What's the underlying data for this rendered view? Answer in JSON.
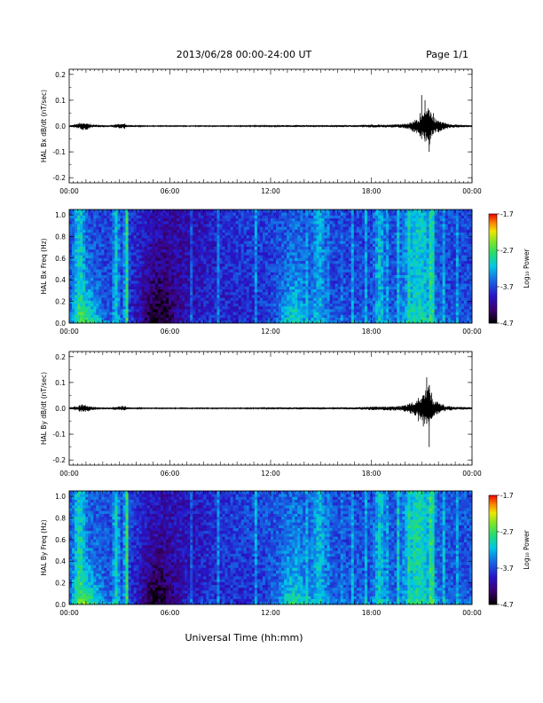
{
  "header": {
    "title": "2013/06/28  00:00-24:00 UT",
    "page": "Page 1/1"
  },
  "footer": {
    "xlabel": "Universal Time (hh:mm)"
  },
  "colors": {
    "line": "#000000",
    "background": "#ffffff"
  },
  "chart_data": [
    {
      "type": "line",
      "id": "bx-dbdt",
      "ylabel": "HAL Bx dB/dt (nT/sec)",
      "x_ticks": [
        "00:00",
        "06:00",
        "12:00",
        "18:00",
        "00:00"
      ],
      "y_ticks": [
        "0.2",
        "0.1",
        "0.0",
        "-0.1",
        "-0.2"
      ],
      "ylim": [
        -0.22,
        0.22
      ],
      "xlim_hours": [
        0,
        24
      ],
      "series": [
        {
          "envelope": [
            [
              0.0,
              0.003
            ],
            [
              0.4,
              0.008
            ],
            [
              0.8,
              0.017
            ],
            [
              1.1,
              0.014
            ],
            [
              1.4,
              0.006
            ],
            [
              1.8,
              0.005
            ],
            [
              2.4,
              0.004
            ],
            [
              3.3,
              0.012
            ],
            [
              3.5,
              0.004
            ],
            [
              4.5,
              0.002
            ],
            [
              6.0,
              0.002
            ],
            [
              8.0,
              0.002
            ],
            [
              10.0,
              0.002
            ],
            [
              12.0,
              0.003
            ],
            [
              13.5,
              0.004
            ],
            [
              15.0,
              0.003
            ],
            [
              17.0,
              0.004
            ],
            [
              18.0,
              0.006
            ],
            [
              19.0,
              0.006
            ],
            [
              19.8,
              0.007
            ],
            [
              20.3,
              0.015
            ],
            [
              20.7,
              0.03
            ],
            [
              21.0,
              0.045
            ],
            [
              21.3,
              0.06
            ],
            [
              21.45,
              0.08
            ],
            [
              21.6,
              0.04
            ],
            [
              22.0,
              0.025
            ],
            [
              22.4,
              0.012
            ],
            [
              23.0,
              0.006
            ],
            [
              24.0,
              0.004
            ]
          ]
        }
      ]
    },
    {
      "type": "heatmap",
      "id": "bx-spectrogram",
      "ylabel": "HAL Bx Freq (Hz)",
      "x_ticks": [
        "00:00",
        "06:00",
        "12:00",
        "18:00",
        "00:00"
      ],
      "y_ticks": [
        "1.0",
        "0.8",
        "0.6",
        "0.4",
        "0.2",
        "0.0"
      ],
      "ylim": [
        0.0,
        1.05
      ],
      "colorbar": {
        "label": "Log₁₀ Power",
        "ticks": [
          "-1.7",
          "-2.7",
          "-3.7",
          "-4.7"
        ],
        "range": [
          -4.7,
          -1.7
        ]
      }
    },
    {
      "type": "line",
      "id": "by-dbdt",
      "ylabel": "HAL By dB/dt (nT/sec)",
      "x_ticks": [
        "00:00",
        "06:00",
        "12:00",
        "18:00",
        "00:00"
      ],
      "y_ticks": [
        "0.2",
        "0.1",
        "0.0",
        "-0.1",
        "-0.2"
      ],
      "ylim": [
        -0.22,
        0.22
      ],
      "xlim_hours": [
        0,
        24
      ],
      "series": [
        {
          "envelope": [
            [
              0.0,
              0.003
            ],
            [
              0.4,
              0.009
            ],
            [
              0.8,
              0.016
            ],
            [
              1.1,
              0.013
            ],
            [
              1.4,
              0.006
            ],
            [
              1.8,
              0.005
            ],
            [
              2.4,
              0.004
            ],
            [
              3.3,
              0.01
            ],
            [
              3.5,
              0.004
            ],
            [
              4.5,
              0.002
            ],
            [
              6.0,
              0.002
            ],
            [
              8.0,
              0.002
            ],
            [
              10.0,
              0.002
            ],
            [
              12.0,
              0.003
            ],
            [
              13.5,
              0.004
            ],
            [
              15.0,
              0.003
            ],
            [
              17.0,
              0.004
            ],
            [
              18.0,
              0.007
            ],
            [
              19.0,
              0.008
            ],
            [
              19.8,
              0.01
            ],
            [
              20.3,
              0.02
            ],
            [
              20.7,
              0.03
            ],
            [
              21.0,
              0.05
            ],
            [
              21.3,
              0.08
            ],
            [
              21.45,
              0.11
            ],
            [
              21.6,
              0.04
            ],
            [
              22.0,
              0.025
            ],
            [
              22.4,
              0.012
            ],
            [
              23.0,
              0.006
            ],
            [
              24.0,
              0.004
            ]
          ]
        }
      ]
    },
    {
      "type": "heatmap",
      "id": "by-spectrogram",
      "ylabel": "HAL By Freq (Hz)",
      "x_ticks": [
        "00:00",
        "06:00",
        "12:00",
        "18:00",
        "00:00"
      ],
      "y_ticks": [
        "1.0",
        "0.8",
        "0.6",
        "0.4",
        "0.2",
        "0.0"
      ],
      "ylim": [
        0.0,
        1.05
      ],
      "colorbar": {
        "label": "Log₁₀ Power",
        "ticks": [
          "-1.7",
          "-2.7",
          "-3.7",
          "-4.7"
        ],
        "range": [
          -4.7,
          -1.7
        ]
      }
    }
  ]
}
